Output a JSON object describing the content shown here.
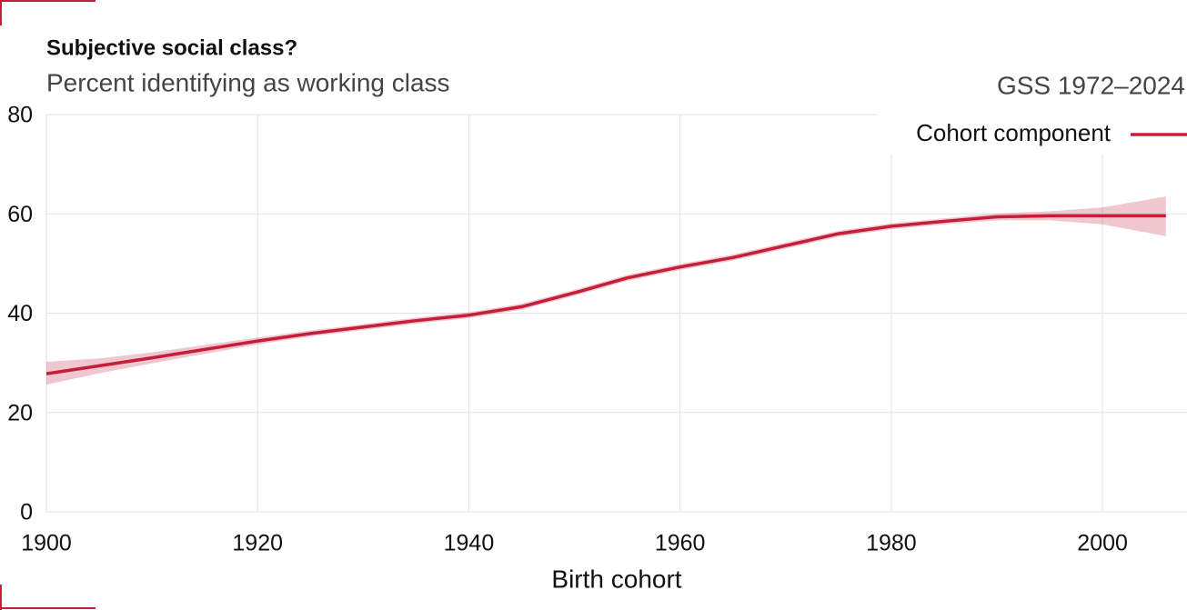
{
  "chart_data": {
    "type": "line",
    "title": "Subjective social class?",
    "subtitle": "Percent identifying as working class",
    "source": "GSS 1972–2024",
    "x_label": "Birth cohort",
    "x": [
      1900,
      1905,
      1910,
      1915,
      1920,
      1925,
      1930,
      1935,
      1940,
      1945,
      1950,
      1955,
      1960,
      1965,
      1970,
      1975,
      1980,
      1985,
      1990,
      1995,
      2000,
      2006
    ],
    "series": [
      {
        "name": "Cohort component",
        "color": "#c41e3a",
        "values": [
          27.8,
          29.4,
          31.0,
          32.7,
          34.4,
          35.9,
          37.2,
          38.5,
          39.6,
          41.3,
          44.1,
          47.1,
          49.3,
          51.2,
          53.6,
          56.0,
          57.5,
          58.5,
          59.4,
          59.6,
          59.6,
          59.6
        ],
        "lower": [
          25.6,
          27.9,
          29.9,
          31.8,
          33.7,
          35.3,
          36.6,
          37.9,
          39.0,
          40.7,
          43.5,
          46.5,
          48.7,
          50.6,
          53.0,
          55.4,
          56.9,
          57.9,
          58.7,
          58.7,
          57.9,
          55.5
        ],
        "upper": [
          30.2,
          30.9,
          32.1,
          33.6,
          35.1,
          36.5,
          37.8,
          39.1,
          40.2,
          41.9,
          44.7,
          47.7,
          49.9,
          51.8,
          54.2,
          56.6,
          58.1,
          59.1,
          60.1,
          60.5,
          61.3,
          63.5
        ]
      }
    ],
    "xlim": [
      1900,
      2008
    ],
    "xticks": [
      1900,
      1920,
      1940,
      1960,
      1980,
      2000
    ],
    "ylim": [
      0,
      80
    ],
    "yticks": [
      0,
      20,
      40,
      60,
      80
    ],
    "grid": true,
    "legend": "top-right"
  }
}
